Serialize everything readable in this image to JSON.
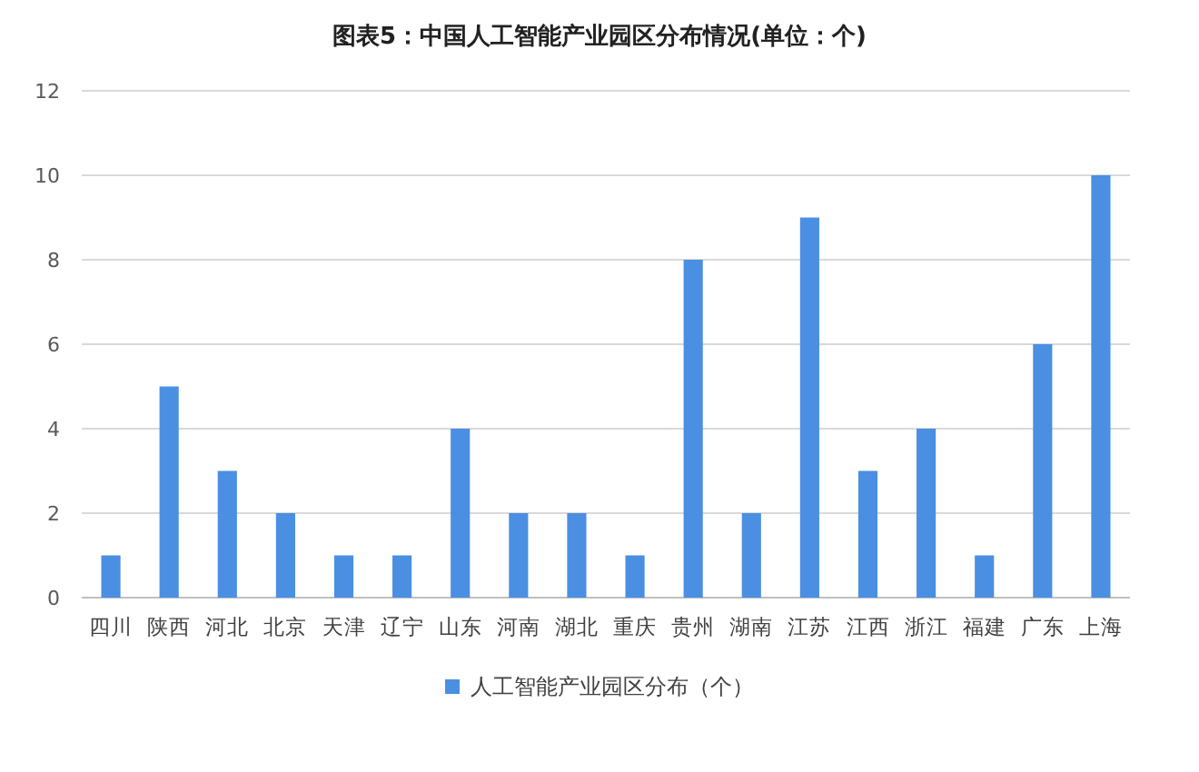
{
  "chart_data": {
    "type": "bar",
    "title": "图表5：中国人工智能产业园区分布情况(单位：个)",
    "categories": [
      "四川",
      "陕西",
      "河北",
      "北京",
      "天津",
      "辽宁",
      "山东",
      "河南",
      "湖北",
      "重庆",
      "贵州",
      "湖南",
      "江苏",
      "江西",
      "浙江",
      "福建",
      "广东",
      "上海"
    ],
    "series": [
      {
        "name": "人工智能产业园区分布（个）",
        "color": "#4a8fe2",
        "values": [
          1,
          5,
          3,
          2,
          1,
          1,
          4,
          2,
          2,
          1,
          8,
          2,
          9,
          3,
          4,
          1,
          6,
          10
        ]
      }
    ],
    "ylim": [
      0,
      12
    ],
    "yticks": [
      0,
      2,
      4,
      6,
      8,
      10,
      12
    ],
    "grid": "y",
    "legend": "bottom"
  }
}
